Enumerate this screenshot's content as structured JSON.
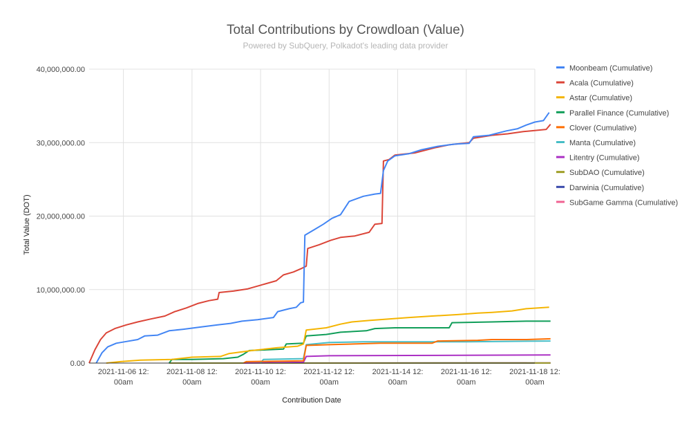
{
  "chart_data": {
    "type": "line",
    "title": "Total Contributions by Crowdloan (Value)",
    "subtitle": "Powered by SubQuery, Polkadot's leading data provider",
    "xlabel": "Contribution Date",
    "ylabel": "Total Value (DOT)",
    "x_domain": [
      "2021-11-05T12:00",
      "2021-11-18T12:00"
    ],
    "ylim": [
      0,
      40000000
    ],
    "y_ticks": [
      0,
      10000000,
      20000000,
      30000000,
      40000000
    ],
    "y_tick_labels": [
      "0.00",
      "10,000,000.00",
      "20,000,000.00",
      "30,000,000.00",
      "40,000,000.00"
    ],
    "x_ticks": [
      "2021-11-06T12:00",
      "2021-11-08T12:00",
      "2021-11-10T12:00",
      "2021-11-12T12:00",
      "2021-11-14T12:00",
      "2021-11-16T12:00",
      "2021-11-18T12:00"
    ],
    "x_tick_labels": [
      [
        "2021-11-06 12:",
        "00am"
      ],
      [
        "2021-11-08 12:",
        "00am"
      ],
      [
        "2021-11-10 12:",
        "00am"
      ],
      [
        "2021-11-12 12:",
        "00am"
      ],
      [
        "2021-11-14 12:",
        "00am"
      ],
      [
        "2021-11-16 12:",
        "00am"
      ],
      [
        "2021-11-18 12:",
        "00am"
      ]
    ],
    "grid": true,
    "legend_position": "right",
    "series": [
      {
        "name": "Moonbeam (Cumulative)",
        "color": "#4285f4",
        "points": [
          [
            "2021-11-05T17:00",
            0
          ],
          [
            "2021-11-05T21:00",
            1400000
          ],
          [
            "2021-11-06T01:00",
            2200000
          ],
          [
            "2021-11-06T07:00",
            2700000
          ],
          [
            "2021-11-06T13:00",
            2900000
          ],
          [
            "2021-11-06T22:00",
            3200000
          ],
          [
            "2021-11-07T03:00",
            3700000
          ],
          [
            "2021-11-07T12:00",
            3800000
          ],
          [
            "2021-11-07T20:00",
            4400000
          ],
          [
            "2021-11-08T06:00",
            4600000
          ],
          [
            "2021-11-08T18:00",
            4900000
          ],
          [
            "2021-11-09T06:00",
            5200000
          ],
          [
            "2021-11-09T15:00",
            5400000
          ],
          [
            "2021-11-09T23:00",
            5700000
          ],
          [
            "2021-11-10T10:00",
            5900000
          ],
          [
            "2021-11-10T21:00",
            6200000
          ],
          [
            "2021-11-11T00:00",
            7000000
          ],
          [
            "2021-11-11T08:00",
            7400000
          ],
          [
            "2021-11-11T13:00",
            7600000
          ],
          [
            "2021-11-11T16:00",
            8200000
          ],
          [
            "2021-11-11T18:00",
            8300000
          ],
          [
            "2021-11-11T19:00",
            17400000
          ],
          [
            "2021-11-12T02:00",
            18200000
          ],
          [
            "2021-11-12T08:00",
            18900000
          ],
          [
            "2021-11-12T14:00",
            19700000
          ],
          [
            "2021-11-12T20:00",
            20200000
          ],
          [
            "2021-11-13T02:00",
            22000000
          ],
          [
            "2021-11-13T12:00",
            22700000
          ],
          [
            "2021-11-13T20:00",
            23000000
          ],
          [
            "2021-11-14T00:00",
            23100000
          ],
          [
            "2021-11-14T02:00",
            26200000
          ],
          [
            "2021-11-14T05:00",
            27500000
          ],
          [
            "2021-11-14T10:00",
            28200000
          ],
          [
            "2021-11-14T20:00",
            28500000
          ],
          [
            "2021-11-15T04:00",
            29000000
          ],
          [
            "2021-11-15T16:00",
            29500000
          ],
          [
            "2021-11-16T04:00",
            29800000
          ],
          [
            "2021-11-16T14:00",
            29900000
          ],
          [
            "2021-11-16T17:00",
            30800000
          ],
          [
            "2021-11-17T04:00",
            31000000
          ],
          [
            "2021-11-17T16:00",
            31600000
          ],
          [
            "2021-11-18T00:00",
            31900000
          ],
          [
            "2021-11-18T06:00",
            32400000
          ],
          [
            "2021-11-18T12:00",
            32800000
          ],
          [
            "2021-11-18T18:00",
            33000000
          ],
          [
            "2021-11-18T22:00",
            34100000
          ]
        ]
      },
      {
        "name": "Acala (Cumulative)",
        "color": "#db4437",
        "points": [
          [
            "2021-11-05T12:00",
            0
          ],
          [
            "2021-11-05T16:00",
            1800000
          ],
          [
            "2021-11-05T20:00",
            3200000
          ],
          [
            "2021-11-06T00:00",
            4100000
          ],
          [
            "2021-11-06T06:00",
            4700000
          ],
          [
            "2021-11-06T14:00",
            5200000
          ],
          [
            "2021-11-06T22:00",
            5600000
          ],
          [
            "2021-11-07T07:00",
            6000000
          ],
          [
            "2021-11-07T17:00",
            6400000
          ],
          [
            "2021-11-08T00:00",
            7000000
          ],
          [
            "2021-11-08T08:00",
            7500000
          ],
          [
            "2021-11-08T16:00",
            8100000
          ],
          [
            "2021-11-09T00:00",
            8500000
          ],
          [
            "2021-11-09T06:00",
            8700000
          ],
          [
            "2021-11-09T07:00",
            9600000
          ],
          [
            "2021-11-09T17:00",
            9800000
          ],
          [
            "2021-11-10T03:00",
            10100000
          ],
          [
            "2021-11-10T12:00",
            10600000
          ],
          [
            "2021-11-10T23:00",
            11200000
          ],
          [
            "2021-11-11T04:00",
            12000000
          ],
          [
            "2021-11-11T11:00",
            12400000
          ],
          [
            "2021-11-11T17:00",
            12900000
          ],
          [
            "2021-11-11T20:00",
            13200000
          ],
          [
            "2021-11-11T21:00",
            15600000
          ],
          [
            "2021-11-12T05:00",
            16100000
          ],
          [
            "2021-11-12T13:00",
            16700000
          ],
          [
            "2021-11-12T20:00",
            17100000
          ],
          [
            "2021-11-13T06:00",
            17300000
          ],
          [
            "2021-11-13T16:00",
            17800000
          ],
          [
            "2021-11-13T20:00",
            18900000
          ],
          [
            "2021-11-14T01:00",
            19000000
          ],
          [
            "2021-11-14T02:00",
            27500000
          ],
          [
            "2021-11-14T06:00",
            27700000
          ],
          [
            "2021-11-14T10:00",
            28300000
          ],
          [
            "2021-11-15T00:00",
            28600000
          ],
          [
            "2021-11-15T14:00",
            29300000
          ],
          [
            "2021-11-16T00:00",
            29700000
          ],
          [
            "2021-11-16T14:00",
            30000000
          ],
          [
            "2021-11-16T17:00",
            30600000
          ],
          [
            "2021-11-17T06:00",
            31000000
          ],
          [
            "2021-11-17T17:00",
            31200000
          ],
          [
            "2021-11-18T04:00",
            31500000
          ],
          [
            "2021-11-18T20:00",
            31800000
          ],
          [
            "2021-11-18T23:00",
            32500000
          ]
        ]
      },
      {
        "name": "Astar (Cumulative)",
        "color": "#f4b400",
        "points": [
          [
            "2021-11-06T00:00",
            0
          ],
          [
            "2021-11-06T10:00",
            200000
          ],
          [
            "2021-11-07T00:00",
            400000
          ],
          [
            "2021-11-07T22:00",
            500000
          ],
          [
            "2021-11-08T12:00",
            800000
          ],
          [
            "2021-11-09T08:00",
            900000
          ],
          [
            "2021-11-09T14:00",
            1300000
          ],
          [
            "2021-11-10T06:00",
            1700000
          ],
          [
            "2021-11-11T00:00",
            2100000
          ],
          [
            "2021-11-11T14:00",
            2300000
          ],
          [
            "2021-11-11T18:00",
            2600000
          ],
          [
            "2021-11-11T20:00",
            4500000
          ],
          [
            "2021-11-12T10:00",
            4800000
          ],
          [
            "2021-11-12T20:00",
            5300000
          ],
          [
            "2021-11-13T04:00",
            5600000
          ],
          [
            "2021-11-13T16:00",
            5800000
          ],
          [
            "2021-11-14T06:00",
            6000000
          ],
          [
            "2021-11-14T20:00",
            6200000
          ],
          [
            "2021-11-15T12:00",
            6400000
          ],
          [
            "2021-11-16T06:00",
            6600000
          ],
          [
            "2021-11-16T20:00",
            6800000
          ],
          [
            "2021-11-17T06:00",
            6900000
          ],
          [
            "2021-11-17T20:00",
            7100000
          ],
          [
            "2021-11-18T06:00",
            7400000
          ],
          [
            "2021-11-18T22:00",
            7600000
          ]
        ]
      },
      {
        "name": "Parallel Finance (Cumulative)",
        "color": "#0f9d58",
        "points": [
          [
            "2021-11-07T20:00",
            0
          ],
          [
            "2021-11-07T22:00",
            500000
          ],
          [
            "2021-11-08T12:00",
            500000
          ],
          [
            "2021-11-09T10:00",
            600000
          ],
          [
            "2021-11-09T20:00",
            800000
          ],
          [
            "2021-11-10T00:00",
            1200000
          ],
          [
            "2021-11-10T04:00",
            1700000
          ],
          [
            "2021-11-10T16:00",
            1800000
          ],
          [
            "2021-11-11T04:00",
            1900000
          ],
          [
            "2021-11-11T06:00",
            2600000
          ],
          [
            "2021-11-11T18:00",
            2700000
          ],
          [
            "2021-11-11T20:00",
            3700000
          ],
          [
            "2021-11-12T10:00",
            3900000
          ],
          [
            "2021-11-12T20:00",
            4200000
          ],
          [
            "2021-11-13T14:00",
            4400000
          ],
          [
            "2021-11-13T20:00",
            4700000
          ],
          [
            "2021-11-14T10:00",
            4800000
          ],
          [
            "2021-11-15T12:00",
            4800000
          ],
          [
            "2021-11-16T00:00",
            4800000
          ],
          [
            "2021-11-16T02:00",
            5500000
          ],
          [
            "2021-11-17T06:00",
            5600000
          ],
          [
            "2021-11-18T06:00",
            5700000
          ],
          [
            "2021-11-18T23:00",
            5700000
          ]
        ]
      },
      {
        "name": "Clover (Cumulative)",
        "color": "#ff6d00",
        "points": [
          [
            "2021-11-10T00:00",
            0
          ],
          [
            "2021-11-10T02:00",
            200000
          ],
          [
            "2021-11-11T18:00",
            300000
          ],
          [
            "2021-11-11T20:00",
            2400000
          ],
          [
            "2021-11-12T12:00",
            2500000
          ],
          [
            "2021-11-14T00:00",
            2700000
          ],
          [
            "2021-11-15T12:00",
            2700000
          ],
          [
            "2021-11-15T16:00",
            3000000
          ],
          [
            "2021-11-16T20:00",
            3100000
          ],
          [
            "2021-11-17T06:00",
            3200000
          ],
          [
            "2021-11-18T06:00",
            3200000
          ],
          [
            "2021-11-18T23:00",
            3300000
          ]
        ]
      },
      {
        "name": "Manta (Cumulative)",
        "color": "#46bdc6",
        "points": [
          [
            "2021-11-10T12:00",
            0
          ],
          [
            "2021-11-10T14:00",
            500000
          ],
          [
            "2021-11-11T18:00",
            600000
          ],
          [
            "2021-11-11T20:00",
            2500000
          ],
          [
            "2021-11-12T12:00",
            2800000
          ],
          [
            "2021-11-13T12:00",
            2900000
          ],
          [
            "2021-11-15T12:00",
            2900000
          ],
          [
            "2021-11-15T16:00",
            2900000
          ],
          [
            "2021-11-16T12:00",
            2900000
          ],
          [
            "2021-11-18T23:00",
            3000000
          ]
        ]
      },
      {
        "name": "Litentry (Cumulative)",
        "color": "#ab30c4",
        "points": [
          [
            "2021-11-10T00:00",
            0
          ],
          [
            "2021-11-11T18:00",
            100000
          ],
          [
            "2021-11-11T20:00",
            900000
          ],
          [
            "2021-11-12T12:00",
            1000000
          ],
          [
            "2021-11-18T23:00",
            1100000
          ]
        ]
      },
      {
        "name": "SubDAO (Cumulative)",
        "color": "#9e9d24",
        "points": [
          [
            "2021-11-07T20:00",
            0
          ],
          [
            "2021-11-18T23:00",
            10000
          ]
        ]
      },
      {
        "name": "Darwinia (Cumulative)",
        "color": "#3949ab",
        "points": [
          [
            "2021-11-07T20:00",
            0
          ],
          [
            "2021-11-18T23:00",
            10000
          ]
        ]
      },
      {
        "name": "SubGame Gamma (Cumulative)",
        "color": "#f06292",
        "points": [
          [
            "2021-11-07T20:00",
            0
          ],
          [
            "2021-11-18T23:00",
            20000
          ]
        ]
      }
    ]
  }
}
